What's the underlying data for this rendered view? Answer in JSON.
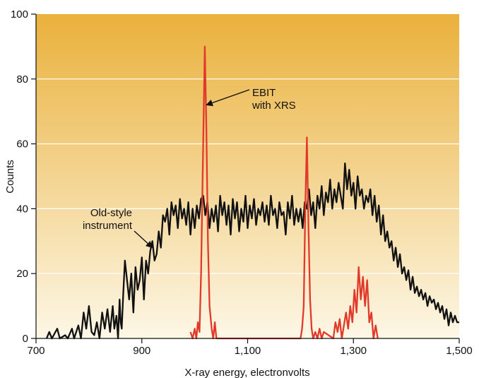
{
  "chart_data": {
    "type": "line",
    "xlabel": "X-ray energy, electronvolts",
    "ylabel": "Counts",
    "xlim": [
      700,
      1500
    ],
    "ylim": [
      0,
      100
    ],
    "x_ticks": [
      {
        "value": 700,
        "label": "700"
      },
      {
        "value": 900,
        "label": "900"
      },
      {
        "value": 1100,
        "label": "1,100"
      },
      {
        "value": 1300,
        "label": "1,300"
      },
      {
        "value": 1500,
        "label": "1,500"
      }
    ],
    "y_ticks": [
      {
        "value": 0,
        "label": "0"
      },
      {
        "value": 20,
        "label": "20"
      },
      {
        "value": 40,
        "label": "40"
      },
      {
        "value": 60,
        "label": "60"
      },
      {
        "value": 80,
        "label": "80"
      },
      {
        "value": 100,
        "label": "100"
      }
    ],
    "grid": "horizontal",
    "background": {
      "top": "#EAB13C",
      "bottom": "#FDF7E6"
    },
    "series": [
      {
        "color": "#111111",
        "points": [
          [
            720,
            0
          ],
          [
            725,
            2
          ],
          [
            730,
            0
          ],
          [
            740,
            3
          ],
          [
            745,
            0
          ],
          [
            755,
            1
          ],
          [
            760,
            0
          ],
          [
            768,
            3
          ],
          [
            772,
            0
          ],
          [
            780,
            4
          ],
          [
            785,
            0
          ],
          [
            790,
            8
          ],
          [
            795,
            3
          ],
          [
            800,
            10
          ],
          [
            805,
            2
          ],
          [
            810,
            1
          ],
          [
            815,
            5
          ],
          [
            820,
            0
          ],
          [
            825,
            8
          ],
          [
            830,
            3
          ],
          [
            835,
            9
          ],
          [
            840,
            2
          ],
          [
            845,
            10
          ],
          [
            848,
            3
          ],
          [
            852,
            7
          ],
          [
            855,
            0
          ],
          [
            858,
            12
          ],
          [
            860,
            5
          ],
          [
            862,
            3
          ],
          [
            865,
            14
          ],
          [
            868,
            24
          ],
          [
            872,
            18
          ],
          [
            876,
            12
          ],
          [
            880,
            20
          ],
          [
            884,
            8
          ],
          [
            888,
            22
          ],
          [
            892,
            15
          ],
          [
            896,
            18
          ],
          [
            900,
            25
          ],
          [
            904,
            12
          ],
          [
            908,
            24
          ],
          [
            912,
            20
          ],
          [
            916,
            27
          ],
          [
            920,
            30
          ],
          [
            924,
            24
          ],
          [
            928,
            26
          ],
          [
            932,
            33
          ],
          [
            936,
            28
          ],
          [
            940,
            38
          ],
          [
            944,
            36
          ],
          [
            948,
            40
          ],
          [
            952,
            32
          ],
          [
            956,
            42
          ],
          [
            960,
            38
          ],
          [
            964,
            41
          ],
          [
            968,
            34
          ],
          [
            972,
            43
          ],
          [
            976,
            37
          ],
          [
            980,
            40
          ],
          [
            984,
            35
          ],
          [
            988,
            42
          ],
          [
            992,
            32
          ],
          [
            996,
            40
          ],
          [
            1000,
            34
          ],
          [
            1004,
            41
          ],
          [
            1008,
            37
          ],
          [
            1012,
            43
          ],
          [
            1016,
            44
          ],
          [
            1020,
            38
          ],
          [
            1024,
            42
          ],
          [
            1028,
            34
          ],
          [
            1032,
            40
          ],
          [
            1036,
            36
          ],
          [
            1040,
            41
          ],
          [
            1044,
            33
          ],
          [
            1048,
            44
          ],
          [
            1052,
            38
          ],
          [
            1056,
            42
          ],
          [
            1060,
            35
          ],
          [
            1064,
            41
          ],
          [
            1068,
            32
          ],
          [
            1072,
            43
          ],
          [
            1076,
            37
          ],
          [
            1080,
            42
          ],
          [
            1084,
            33
          ],
          [
            1088,
            40
          ],
          [
            1092,
            36
          ],
          [
            1096,
            44
          ],
          [
            1100,
            34
          ],
          [
            1104,
            41
          ],
          [
            1108,
            37
          ],
          [
            1112,
            43
          ],
          [
            1116,
            35
          ],
          [
            1120,
            40
          ],
          [
            1124,
            38
          ],
          [
            1128,
            42
          ],
          [
            1132,
            36
          ],
          [
            1136,
            41
          ],
          [
            1140,
            35
          ],
          [
            1144,
            44
          ],
          [
            1148,
            38
          ],
          [
            1152,
            40
          ],
          [
            1156,
            34
          ],
          [
            1160,
            42
          ],
          [
            1164,
            38
          ],
          [
            1168,
            39
          ],
          [
            1172,
            32
          ],
          [
            1176,
            42
          ],
          [
            1180,
            37
          ],
          [
            1184,
            44
          ],
          [
            1188,
            35
          ],
          [
            1192,
            40
          ],
          [
            1196,
            36
          ],
          [
            1200,
            40
          ],
          [
            1204,
            34
          ],
          [
            1208,
            42
          ],
          [
            1212,
            40
          ],
          [
            1216,
            46
          ],
          [
            1220,
            38
          ],
          [
            1224,
            42
          ],
          [
            1228,
            34
          ],
          [
            1232,
            44
          ],
          [
            1236,
            40
          ],
          [
            1240,
            47
          ],
          [
            1244,
            38
          ],
          [
            1248,
            45
          ],
          [
            1252,
            42
          ],
          [
            1256,
            49
          ],
          [
            1260,
            40
          ],
          [
            1264,
            46
          ],
          [
            1268,
            42
          ],
          [
            1272,
            48
          ],
          [
            1276,
            44
          ],
          [
            1280,
            40
          ],
          [
            1284,
            54
          ],
          [
            1288,
            46
          ],
          [
            1292,
            52
          ],
          [
            1296,
            44
          ],
          [
            1300,
            48
          ],
          [
            1304,
            40
          ],
          [
            1308,
            50
          ],
          [
            1312,
            44
          ],
          [
            1316,
            46
          ],
          [
            1320,
            40
          ],
          [
            1324,
            44
          ],
          [
            1328,
            42
          ],
          [
            1332,
            46
          ],
          [
            1336,
            38
          ],
          [
            1340,
            44
          ],
          [
            1344,
            36
          ],
          [
            1348,
            41
          ],
          [
            1352,
            32
          ],
          [
            1356,
            38
          ],
          [
            1360,
            30
          ],
          [
            1364,
            33
          ],
          [
            1368,
            28
          ],
          [
            1372,
            30
          ],
          [
            1376,
            24
          ],
          [
            1380,
            28
          ],
          [
            1384,
            22
          ],
          [
            1388,
            26
          ],
          [
            1392,
            20
          ],
          [
            1396,
            22
          ],
          [
            1400,
            18
          ],
          [
            1404,
            21
          ],
          [
            1408,
            15
          ],
          [
            1412,
            19
          ],
          [
            1416,
            14
          ],
          [
            1420,
            16
          ],
          [
            1424,
            13
          ],
          [
            1428,
            15
          ],
          [
            1432,
            12
          ],
          [
            1436,
            14
          ],
          [
            1440,
            10
          ],
          [
            1444,
            13
          ],
          [
            1448,
            11
          ],
          [
            1452,
            12
          ],
          [
            1456,
            9
          ],
          [
            1460,
            11
          ],
          [
            1464,
            8
          ],
          [
            1468,
            10
          ],
          [
            1472,
            6
          ],
          [
            1476,
            9
          ],
          [
            1480,
            4
          ],
          [
            1484,
            8
          ],
          [
            1488,
            5
          ],
          [
            1492,
            7
          ],
          [
            1496,
            5
          ],
          [
            1500,
            5
          ]
        ]
      },
      {
        "color": "#E23A2A",
        "points": [
          [
            992,
            2
          ],
          [
            996,
            0
          ],
          [
            1000,
            3
          ],
          [
            1003,
            0
          ],
          [
            1006,
            5
          ],
          [
            1009,
            2
          ],
          [
            1012,
            20
          ],
          [
            1016,
            60
          ],
          [
            1019,
            90
          ],
          [
            1022,
            65
          ],
          [
            1025,
            30
          ],
          [
            1028,
            10
          ],
          [
            1032,
            3
          ],
          [
            1035,
            0
          ],
          [
            1038,
            5
          ],
          [
            1041,
            0
          ],
          [
            1200,
            0
          ],
          [
            1203,
            3
          ],
          [
            1206,
            10
          ],
          [
            1209,
            40
          ],
          [
            1212,
            62
          ],
          [
            1215,
            35
          ],
          [
            1218,
            12
          ],
          [
            1221,
            3
          ],
          [
            1224,
            0
          ],
          [
            1228,
            2
          ],
          [
            1232,
            0
          ],
          [
            1236,
            3
          ],
          [
            1240,
            0
          ],
          [
            1244,
            2
          ],
          [
            1262,
            0
          ],
          [
            1266,
            5
          ],
          [
            1270,
            2
          ],
          [
            1274,
            6
          ],
          [
            1278,
            0
          ],
          [
            1282,
            4
          ],
          [
            1286,
            8
          ],
          [
            1290,
            3
          ],
          [
            1294,
            10
          ],
          [
            1298,
            5
          ],
          [
            1302,
            15
          ],
          [
            1306,
            8
          ],
          [
            1310,
            22
          ],
          [
            1314,
            12
          ],
          [
            1318,
            19
          ],
          [
            1322,
            10
          ],
          [
            1326,
            18
          ],
          [
            1330,
            5
          ],
          [
            1334,
            8
          ],
          [
            1338,
            0
          ],
          [
            1342,
            4
          ],
          [
            1346,
            0
          ]
        ]
      }
    ],
    "annotations": [
      {
        "lines": [
          "EBIT",
          "with XRS"
        ],
        "target": [
          1022,
          72
        ]
      },
      {
        "lines": [
          "Old-style",
          "instrument"
        ],
        "target": [
          920,
          28
        ]
      }
    ]
  }
}
